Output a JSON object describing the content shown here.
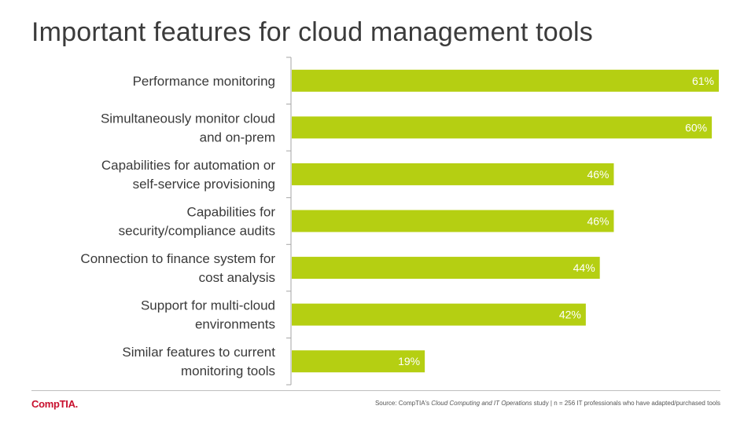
{
  "page": {
    "title": "Important features for cloud management tools"
  },
  "colors": {
    "bar": "#b5cf12",
    "axis": "#a6a6a6",
    "value_text": "#ffffff",
    "logo": "#c8102e"
  },
  "chart_data": {
    "type": "bar",
    "orientation": "horizontal",
    "title": "Important features for cloud management tools",
    "categories": [
      [
        "Performance monitoring"
      ],
      [
        "Simultaneously monitor cloud",
        "and on-prem"
      ],
      [
        "Capabilities for automation or",
        "self-service provisioning"
      ],
      [
        "Capabilities for",
        "security/compliance audits"
      ],
      [
        "Connection to finance system for",
        "cost analysis"
      ],
      [
        "Support for multi-cloud",
        "environments"
      ],
      [
        "Similar features to current",
        "monitoring tools"
      ]
    ],
    "values": [
      61,
      60,
      46,
      46,
      44,
      42,
      19
    ],
    "value_labels": [
      "61%",
      "60%",
      "46%",
      "46%",
      "44%",
      "42%",
      "19%"
    ],
    "unit": "%",
    "xlim": [
      0,
      61
    ],
    "grid": false,
    "legend": "none"
  },
  "footer": {
    "logo_text": "CompTIA.",
    "source_prefix": "Source: CompTIA's ",
    "source_study": "Cloud Computing and IT Operations",
    "source_suffix": " study | n = 256 IT professionals who have adapted/purchased tools"
  }
}
